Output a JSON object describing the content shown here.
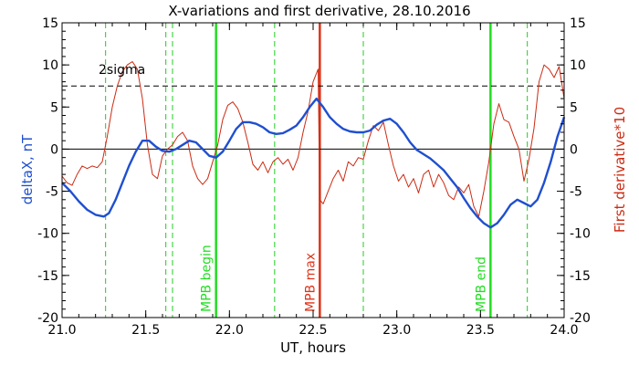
{
  "chart_data": {
    "type": "line",
    "title": "X-variations and first derivative, 28.10.2016",
    "xlabel": "UT, hours",
    "ylabel_left": "deltaX, nT",
    "ylabel_right": "First derivative*10",
    "xlim": [
      21.0,
      24.0
    ],
    "ylim": [
      -20,
      15
    ],
    "x_ticks": [
      "21.0",
      "21.5",
      "22.0",
      "22.5",
      "23.0",
      "23.5",
      "24.0"
    ],
    "x_tick_values": [
      21.0,
      21.5,
      22.0,
      22.5,
      23.0,
      23.5,
      24.0
    ],
    "y_ticks": [
      "15",
      "10",
      "5",
      "0",
      "-5",
      "-10",
      "-15",
      "-20"
    ],
    "y_tick_values": [
      15,
      10,
      5,
      0,
      -5,
      -10,
      -15,
      -20
    ],
    "sigma_label": "2sigma",
    "sigma_level": 7.5,
    "zero_level": 0,
    "colors": {
      "deltax": "#1f4fd0",
      "derivative": "#cc2a12",
      "mpb": "#22dd22",
      "mpb_max": "#dd3318",
      "candidate": "#22cc22",
      "axis": "#000000"
    },
    "markers": [
      {
        "x": 21.92,
        "label": "MPB begin",
        "kind": "mpb"
      },
      {
        "x": 22.54,
        "label": "MPB max",
        "kind": "mpb_max"
      },
      {
        "x": 23.56,
        "label": "MPB end",
        "kind": "mpb"
      }
    ],
    "candidate_lines": [
      21.26,
      21.62,
      21.66,
      22.27,
      22.8,
      23.78
    ],
    "series": [
      {
        "name": "deltaX, nT",
        "x": [
          21.0,
          21.05,
          21.1,
          21.15,
          21.2,
          21.25,
          21.28,
          21.32,
          21.36,
          21.4,
          21.44,
          21.48,
          21.52,
          21.56,
          21.6,
          21.64,
          21.68,
          21.72,
          21.76,
          21.8,
          21.84,
          21.88,
          21.92,
          21.96,
          22.0,
          22.04,
          22.08,
          22.12,
          22.16,
          22.2,
          22.24,
          22.28,
          22.32,
          22.36,
          22.4,
          22.44,
          22.48,
          22.52,
          22.56,
          22.6,
          22.64,
          22.68,
          22.72,
          22.76,
          22.8,
          22.84,
          22.88,
          22.92,
          22.96,
          23.0,
          23.04,
          23.08,
          23.12,
          23.16,
          23.2,
          23.24,
          23.28,
          23.32,
          23.36,
          23.4,
          23.44,
          23.48,
          23.52,
          23.56,
          23.6,
          23.64,
          23.68,
          23.72,
          23.76,
          23.8,
          23.84,
          23.88,
          23.92,
          23.96,
          24.0
        ],
        "y": [
          -4.0,
          -5.0,
          -6.2,
          -7.2,
          -7.8,
          -8.0,
          -7.6,
          -6.0,
          -4.0,
          -2.0,
          -0.3,
          1.0,
          1.0,
          0.3,
          -0.2,
          -0.3,
          0.0,
          0.5,
          1.0,
          0.8,
          0.0,
          -0.8,
          -1.0,
          -0.3,
          1.0,
          2.4,
          3.2,
          3.2,
          3.0,
          2.6,
          2.0,
          1.8,
          1.9,
          2.3,
          2.8,
          3.8,
          5.0,
          6.0,
          5.0,
          3.8,
          3.0,
          2.4,
          2.1,
          2.0,
          2.0,
          2.2,
          2.9,
          3.4,
          3.6,
          3.0,
          2.0,
          0.8,
          -0.1,
          -0.6,
          -1.1,
          -1.8,
          -2.5,
          -3.5,
          -4.5,
          -5.8,
          -7.0,
          -8.0,
          -8.8,
          -9.3,
          -8.8,
          -7.8,
          -6.6,
          -6.0,
          -6.4,
          -6.8,
          -6.0,
          -4.0,
          -1.5,
          1.5,
          3.8
        ]
      },
      {
        "name": "First derivative*10",
        "x": [
          21.0,
          21.03,
          21.06,
          21.09,
          21.12,
          21.15,
          21.18,
          21.21,
          21.24,
          21.27,
          21.3,
          21.33,
          21.36,
          21.39,
          21.42,
          21.45,
          21.48,
          21.51,
          21.54,
          21.57,
          21.6,
          21.63,
          21.66,
          21.69,
          21.72,
          21.75,
          21.78,
          21.81,
          21.84,
          21.87,
          21.9,
          21.93,
          21.96,
          21.99,
          22.02,
          22.05,
          22.08,
          22.11,
          22.14,
          22.17,
          22.2,
          22.23,
          22.26,
          22.29,
          22.32,
          22.35,
          22.38,
          22.41,
          22.44,
          22.47,
          22.5,
          22.53,
          22.54,
          22.56,
          22.59,
          22.62,
          22.65,
          22.68,
          22.71,
          22.74,
          22.77,
          22.8,
          22.83,
          22.86,
          22.89,
          22.92,
          22.95,
          22.98,
          23.01,
          23.04,
          23.07,
          23.1,
          23.13,
          23.16,
          23.19,
          23.22,
          23.25,
          23.28,
          23.31,
          23.34,
          23.37,
          23.4,
          23.43,
          23.46,
          23.49,
          23.52,
          23.55,
          23.58,
          23.61,
          23.64,
          23.67,
          23.7,
          23.73,
          23.76,
          23.79,
          23.82,
          23.85,
          23.88,
          23.91,
          23.94,
          23.97,
          24.0
        ],
        "y": [
          -3.2,
          -4.0,
          -4.3,
          -3.0,
          -2.0,
          -2.3,
          -2.0,
          -2.2,
          -1.5,
          1.5,
          5.0,
          7.5,
          9.2,
          10.0,
          10.4,
          9.5,
          6.0,
          0.5,
          -3.0,
          -3.5,
          -0.8,
          0.0,
          0.5,
          1.5,
          2.0,
          1.0,
          -2.0,
          -3.5,
          -4.2,
          -3.5,
          -1.5,
          0.5,
          3.5,
          5.2,
          5.6,
          4.8,
          3.2,
          0.8,
          -1.8,
          -2.5,
          -1.5,
          -2.8,
          -1.5,
          -1.0,
          -1.8,
          -1.2,
          -2.5,
          -1.0,
          2.0,
          4.5,
          8.0,
          9.5,
          -6.0,
          -6.5,
          -5.0,
          -3.5,
          -2.5,
          -3.8,
          -1.5,
          -2.0,
          -1.0,
          -1.2,
          1.0,
          2.8,
          2.2,
          3.2,
          0.5,
          -2.0,
          -3.8,
          -3.0,
          -4.5,
          -3.5,
          -5.2,
          -3.0,
          -2.5,
          -4.5,
          -3.0,
          -4.0,
          -5.5,
          -6.0,
          -4.5,
          -5.2,
          -4.2,
          -6.8,
          -8.0,
          -5.0,
          -1.5,
          3.0,
          5.4,
          3.5,
          3.2,
          1.5,
          0.0,
          -3.8,
          -1.2,
          2.5,
          8.0,
          10.0,
          9.5,
          8.5,
          9.8,
          6.0
        ]
      }
    ]
  }
}
